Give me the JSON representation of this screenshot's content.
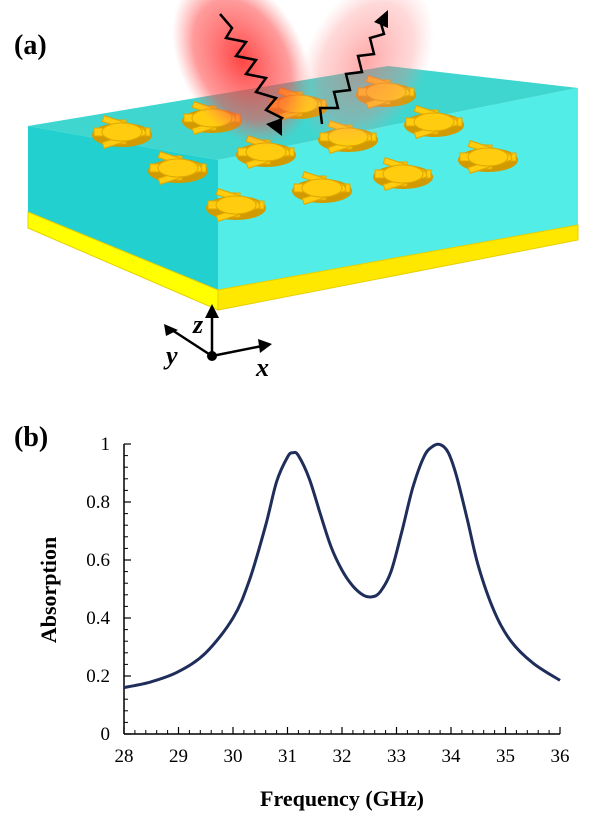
{
  "panels": {
    "a": {
      "label": "(a)"
    },
    "b": {
      "label": "(b)"
    }
  },
  "illustration": {
    "axes_labels": {
      "z": "z",
      "y": "y",
      "x": "x"
    },
    "colors": {
      "dielectric": "#2ee6dd",
      "ground_plane": "#ffff00",
      "resonator": "#ffc000",
      "beam": "#ff3b3b"
    },
    "icons": [
      "incident-wave-icon",
      "reflected-wave-icon",
      "cross-shaped-resonator-icon"
    ]
  },
  "chart_data": {
    "type": "line",
    "title": "",
    "xlabel": "Frequency (GHz)",
    "ylabel": "Absorption",
    "xlim": [
      28,
      36
    ],
    "ylim": [
      0,
      1
    ],
    "xticks": [
      28,
      29,
      30,
      31,
      32,
      33,
      34,
      35,
      36
    ],
    "yticks": [
      0,
      0.2,
      0.4,
      0.6,
      0.8,
      1
    ],
    "ytick_labels": [
      "0",
      "0.2",
      "0.4",
      "0.6",
      "0.8",
      "1"
    ],
    "grid": false,
    "legend": "none",
    "line_color": "#1f2d5a",
    "series": [
      {
        "x": [
          28.0,
          28.5,
          29.0,
          29.5,
          30.0,
          30.3,
          30.6,
          30.8,
          31.0,
          31.1,
          31.2,
          31.4,
          31.6,
          31.8,
          32.0,
          32.2,
          32.4,
          32.55,
          32.7,
          32.9,
          33.1,
          33.3,
          33.5,
          33.65,
          33.8,
          33.95,
          34.1,
          34.3,
          34.5,
          34.8,
          35.1,
          35.5,
          36.0
        ],
        "y": [
          0.16,
          0.18,
          0.215,
          0.28,
          0.4,
          0.53,
          0.72,
          0.87,
          0.955,
          0.97,
          0.96,
          0.88,
          0.76,
          0.645,
          0.565,
          0.51,
          0.478,
          0.473,
          0.49,
          0.56,
          0.7,
          0.85,
          0.955,
          0.99,
          0.998,
          0.97,
          0.89,
          0.74,
          0.58,
          0.42,
          0.32,
          0.245,
          0.185
        ]
      }
    ]
  }
}
